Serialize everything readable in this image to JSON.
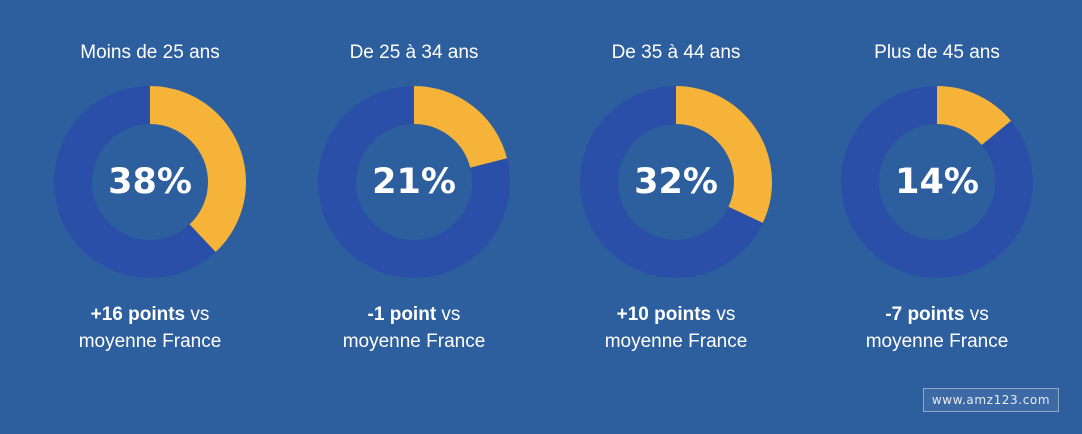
{
  "colors": {
    "background": "#2d5e9e",
    "ring_track": "#2a4fa8",
    "ring_fill": "#f5b33a",
    "text": "#ffffff"
  },
  "chart_data": [
    {
      "type": "pie",
      "style": "donut",
      "title": "Moins de 25 ans",
      "value": 38,
      "value_label": "38%",
      "note_points": "+16 points",
      "note_rest": " vs",
      "note_line2": "moyenne France"
    },
    {
      "type": "pie",
      "style": "donut",
      "title": "De 25 à 34 ans",
      "value": 21,
      "value_label": "21%",
      "note_points": "-1 point",
      "note_rest": " vs",
      "note_line2": "moyenne France"
    },
    {
      "type": "pie",
      "style": "donut",
      "title": "De 35 à 44 ans",
      "value": 32,
      "value_label": "32%",
      "note_points": "+10 points",
      "note_rest": " vs",
      "note_line2": "moyenne France"
    },
    {
      "type": "pie",
      "style": "donut",
      "title": "Plus de 45 ans",
      "value": 14,
      "value_label": "14%",
      "note_points": "-7 points",
      "note_rest": " vs",
      "note_line2": "moyenne France"
    }
  ],
  "watermark": {
    "text": "www.amz123.com"
  }
}
